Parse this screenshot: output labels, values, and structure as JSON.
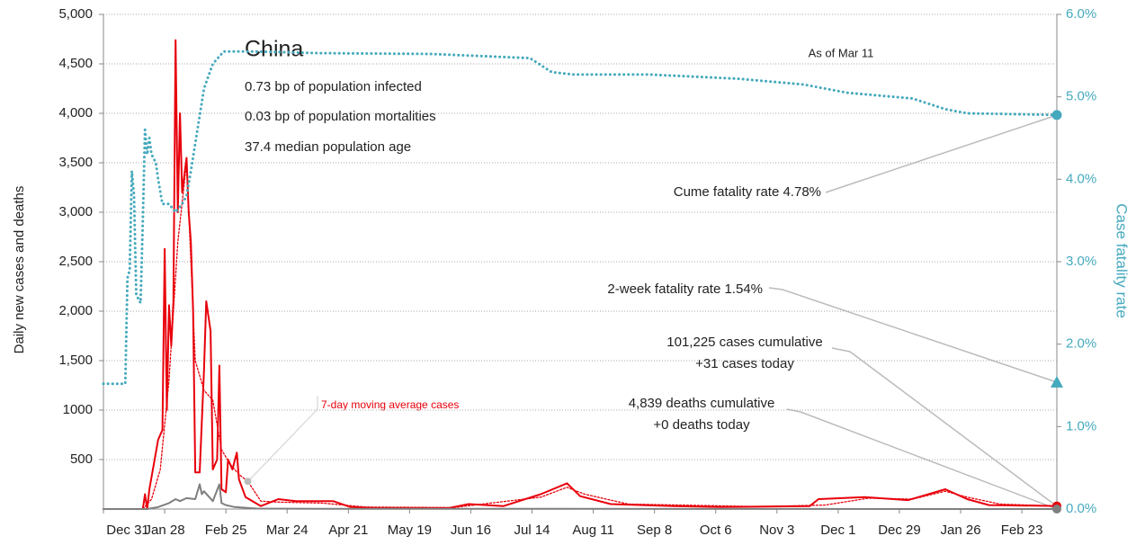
{
  "chart_data": {
    "type": "line",
    "title": "China",
    "subtitle": [
      "0.73 bp of population infected",
      "0.03 bp of population mortalities",
      "37.4 median population age"
    ],
    "ylabel": "Daily new cases and deaths",
    "y2label": "Case fatality rate",
    "xlim": [
      0,
      436
    ],
    "xticks": [
      {
        "value": 0,
        "label": "Dec 31"
      },
      {
        "value": 28,
        "label": "Jan 28"
      },
      {
        "value": 56,
        "label": "Feb 25"
      },
      {
        "value": 84,
        "label": "Mar 24"
      },
      {
        "value": 112,
        "label": "Apr 21"
      },
      {
        "value": 140,
        "label": "May 19"
      },
      {
        "value": 168,
        "label": "Jun 16"
      },
      {
        "value": 196,
        "label": "Jul 14"
      },
      {
        "value": 224,
        "label": "Aug 11"
      },
      {
        "value": 252,
        "label": "Sep 8"
      },
      {
        "value": 280,
        "label": "Oct 6"
      },
      {
        "value": 308,
        "label": "Nov 3"
      },
      {
        "value": 336,
        "label": "Dec 1"
      },
      {
        "value": 364,
        "label": "Dec 29"
      },
      {
        "value": 392,
        "label": "Jan 26"
      },
      {
        "value": 420,
        "label": "Feb 23"
      }
    ],
    "ylim": [
      0,
      5000
    ],
    "yticks": [
      500,
      1000,
      {
        "value": 1500,
        "label": "1,500"
      },
      {
        "value": 2000,
        "label": "2,000"
      },
      {
        "value": 2500,
        "label": "2,500"
      },
      {
        "value": 3000,
        "label": "3,000"
      },
      {
        "value": 3500,
        "label": "3,500"
      },
      {
        "value": 4000,
        "label": "4,000"
      },
      {
        "value": 4500,
        "label": "4,500"
      },
      {
        "value": 5000,
        "label": "5,000"
      }
    ],
    "y2lim": [
      0,
      6
    ],
    "y2ticks": [
      {
        "value": 0,
        "label": "0.0%"
      },
      {
        "value": 1,
        "label": "1.0%"
      },
      {
        "value": 2,
        "label": "2.0%"
      },
      {
        "value": 3,
        "label": "3.0%"
      },
      {
        "value": 4,
        "label": "4.0%"
      },
      {
        "value": 5,
        "label": "5.0%"
      },
      {
        "value": 6,
        "label": "6.0%"
      }
    ],
    "grid": true,
    "series": [
      {
        "color": "#e8000b",
        "style": "solid",
        "x": [
          0,
          18,
          19,
          20,
          21,
          25,
          27,
          28,
          29,
          30,
          31,
          32,
          33,
          34,
          35,
          36,
          38,
          39,
          40,
          41,
          42,
          44,
          46,
          47,
          49,
          50,
          52,
          53,
          54,
          56,
          57,
          59,
          61,
          62,
          65,
          72,
          80,
          88,
          105,
          113,
          125,
          158,
          167,
          183,
          200,
          212,
          218,
          232,
          261,
          282,
          323,
          327,
          348,
          368,
          385,
          395,
          405,
          436
        ],
        "values": [
          0,
          0,
          150,
          0,
          200,
          700,
          800,
          2630,
          1000,
          2060,
          1650,
          2100,
          4740,
          3000,
          4000,
          3200,
          3550,
          3000,
          2700,
          2000,
          370,
          370,
          1400,
          2100,
          1800,
          400,
          500,
          1450,
          200,
          170,
          500,
          400,
          570,
          300,
          120,
          30,
          100,
          80,
          80,
          20,
          10,
          10,
          50,
          30,
          150,
          260,
          130,
          50,
          30,
          20,
          30,
          100,
          120,
          90,
          200,
          100,
          40,
          31
        ]
      },
      {
        "name": "7-day moving average cases",
        "color": "#e8000b",
        "style": "dotted",
        "x": [
          0,
          18,
          22,
          26,
          30,
          34,
          38,
          42,
          46,
          50,
          54,
          58,
          62,
          66,
          72,
          80,
          100,
          120,
          160,
          200,
          212,
          220,
          240,
          300,
          330,
          350,
          370,
          385,
          395,
          410,
          436
        ],
        "values": [
          0,
          0,
          100,
          400,
          1300,
          2700,
          3500,
          1500,
          1200,
          1100,
          600,
          450,
          350,
          280,
          80,
          70,
          60,
          20,
          15,
          120,
          220,
          150,
          50,
          25,
          40,
          110,
          100,
          180,
          120,
          50,
          30
        ]
      },
      {
        "color": "#7f7f7f",
        "style": "solid",
        "x": [
          0,
          20,
          25,
          30,
          33,
          35,
          38,
          42,
          44,
          45,
          46,
          50,
          53,
          54,
          56,
          60,
          70,
          100,
          200,
          436
        ],
        "values": [
          0,
          0,
          20,
          60,
          100,
          80,
          110,
          100,
          250,
          150,
          180,
          80,
          250,
          60,
          40,
          20,
          5,
          2,
          2,
          0
        ]
      },
      {
        "color": "#45a9bd",
        "style": "dotted",
        "axis": "y2",
        "x": [
          0,
          10,
          11,
          12,
          13,
          14,
          15,
          17,
          18,
          19,
          20,
          21,
          22,
          24,
          25,
          27,
          30,
          33,
          36,
          38,
          40,
          43,
          46,
          50,
          55,
          70,
          100,
          150,
          195,
          205,
          215,
          250,
          290,
          320,
          340,
          370,
          385,
          395,
          436
        ],
        "values": [
          1.52,
          1.52,
          2.8,
          2.9,
          4.1,
          3.8,
          2.6,
          2.5,
          3.5,
          4.6,
          4.3,
          4.5,
          4.3,
          4.2,
          4.0,
          3.7,
          3.7,
          3.6,
          3.7,
          3.8,
          4.1,
          4.6,
          5.1,
          5.4,
          5.55,
          5.55,
          5.53,
          5.52,
          5.47,
          5.3,
          5.27,
          5.27,
          5.22,
          5.15,
          5.05,
          4.98,
          4.85,
          4.8,
          4.78
        ]
      }
    ],
    "two_week_rate": {
      "label": "2-week fatality rate 1.54%",
      "value": 1.54
    },
    "annotations": [
      "As of Mar 11",
      "Cume fatality rate 4.78%",
      "101,225 cases cumulative",
      "+31 cases today",
      "4,839 deaths cumulative",
      "+0 deaths today"
    ]
  }
}
